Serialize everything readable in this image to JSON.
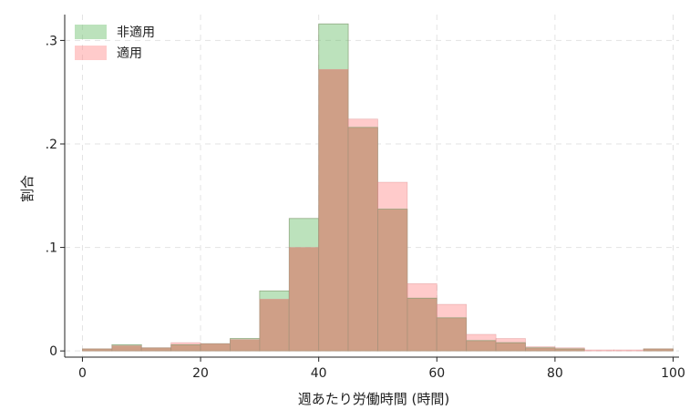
{
  "chart_data": {
    "type": "bar",
    "xlabel": "週あたり労働時間 (時間)",
    "ylabel": "割合",
    "xlim": [
      -3,
      101
    ],
    "ylim": [
      -0.006,
      0.325
    ],
    "xticks": [
      0,
      20,
      40,
      60,
      80,
      100
    ],
    "xtick_labels": [
      "0",
      "20",
      "40",
      "60",
      "80",
      "100"
    ],
    "yticks": [
      0,
      0.1,
      0.2,
      0.3
    ],
    "ytick_labels": [
      "0",
      ".1",
      ".2",
      ".3"
    ],
    "grid": true,
    "legend_position": "top-left",
    "bin_width": 5,
    "bin_starts": [
      0,
      5,
      10,
      15,
      20,
      25,
      30,
      35,
      40,
      45,
      50,
      55,
      60,
      65,
      70,
      75,
      80,
      85,
      90,
      95
    ],
    "series": [
      {
        "name": "非適用",
        "color": "#6abf6a",
        "values": [
          0.002,
          0.006,
          0.003,
          0.006,
          0.007,
          0.012,
          0.058,
          0.128,
          0.316,
          0.216,
          0.137,
          0.051,
          0.032,
          0.01,
          0.008,
          0.003,
          0.002,
          0.0,
          0.0,
          0.002
        ]
      },
      {
        "name": "適用",
        "color": "#ff8c8c",
        "values": [
          0.002,
          0.005,
          0.003,
          0.008,
          0.007,
          0.011,
          0.05,
          0.1,
          0.272,
          0.224,
          0.163,
          0.065,
          0.045,
          0.016,
          0.012,
          0.004,
          0.003,
          0.001,
          0.001,
          0.002
        ]
      }
    ],
    "overlap_color": "#cf9f87"
  }
}
